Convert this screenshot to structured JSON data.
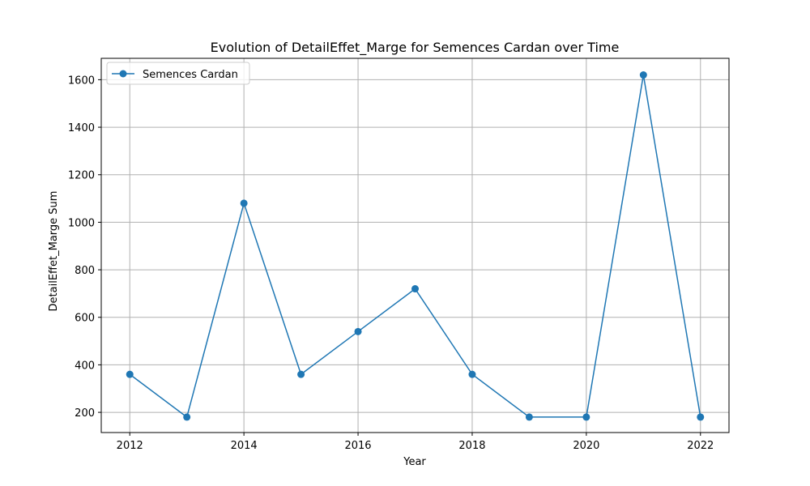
{
  "chart_data": {
    "type": "line",
    "title": "Evolution of DetailEffet_Marge for Semences Cardan over Time",
    "xlabel": "Year",
    "ylabel": "DetailEffet_Marge Sum",
    "xlim": [
      2011.5,
      2022.5
    ],
    "ylim": [
      115,
      1690
    ],
    "x_ticks": [
      2012,
      2014,
      2016,
      2018,
      2020,
      2022
    ],
    "y_ticks": [
      200,
      400,
      600,
      800,
      1000,
      1200,
      1400,
      1600
    ],
    "grid": true,
    "legend_position": "top-left",
    "series": [
      {
        "name": "Semences Cardan",
        "color": "#1f77b4",
        "marker": "circle",
        "x": [
          2012,
          2013,
          2014,
          2015,
          2016,
          2017,
          2018,
          2019,
          2020,
          2021,
          2022
        ],
        "y": [
          360,
          180,
          1080,
          360,
          540,
          720,
          360,
          180,
          180,
          1620,
          180
        ]
      }
    ]
  }
}
